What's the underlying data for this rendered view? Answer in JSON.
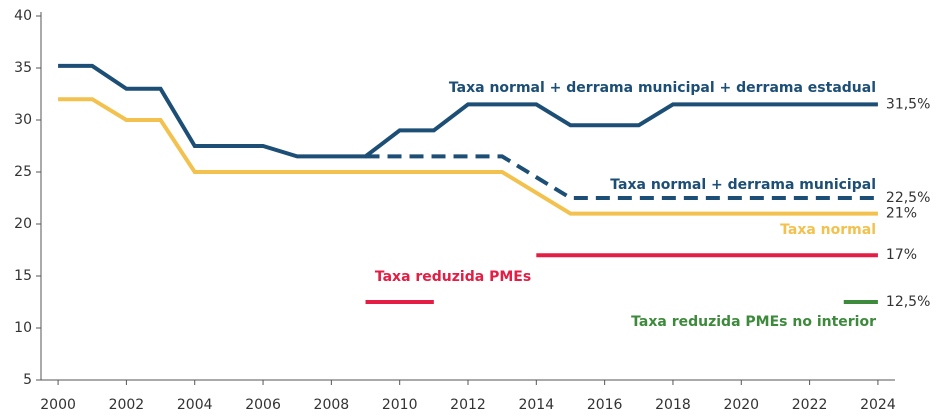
{
  "chart_data": {
    "type": "line",
    "xlim": [
      1999.5,
      2024.5
    ],
    "xticks": [
      2000,
      2002,
      2004,
      2006,
      2008,
      2010,
      2012,
      2014,
      2016,
      2018,
      2020,
      2022,
      2024
    ],
    "ylim": [
      5,
      40
    ],
    "yticks": [
      5,
      10,
      15,
      20,
      25,
      30,
      35,
      40
    ],
    "grid": false,
    "series": [
      {
        "name": "Taxa normal + derrama municipal + derrama estadual",
        "color": "#1d4f76",
        "dashed": false,
        "x": [
          2000,
          2001,
          2002,
          2003,
          2004,
          2006,
          2007,
          2009,
          2010,
          2011,
          2012,
          2014,
          2015,
          2017,
          2018,
          2024
        ],
        "values": [
          35.2,
          35.2,
          33,
          33,
          27.5,
          27.5,
          26.5,
          26.5,
          29,
          29,
          31.5,
          31.5,
          29.5,
          29.5,
          31.5,
          31.5
        ],
        "end_label": "31,5%"
      },
      {
        "name": "Taxa normal + derrama municipal",
        "color": "#1d4f76",
        "dashed": true,
        "x": [
          2009,
          2013,
          2015,
          2024
        ],
        "values": [
          26.5,
          26.5,
          22.5,
          22.5
        ],
        "end_label": "22,5%"
      },
      {
        "name": "Taxa normal",
        "color": "#f2c14e",
        "dashed": false,
        "x": [
          2000,
          2001,
          2002,
          2003,
          2004,
          2013,
          2015,
          2024
        ],
        "values": [
          32,
          32,
          30,
          30,
          25,
          25,
          21,
          21
        ],
        "end_label": "21%"
      },
      {
        "name": "Taxa reduzida PMEs",
        "color": "#e31d43",
        "dashed": false,
        "x": [
          2009,
          2011,
          2012,
          2014,
          2024
        ],
        "values": [
          12.5,
          12.5,
          null,
          17,
          17
        ],
        "end_label": "17%"
      },
      {
        "name": "Taxa reduzida PMEs no interior",
        "color": "#3e8a3c",
        "dashed": false,
        "x": [
          2023,
          2024
        ],
        "values": [
          12.5,
          12.5
        ],
        "end_label": "12,5%"
      }
    ]
  }
}
